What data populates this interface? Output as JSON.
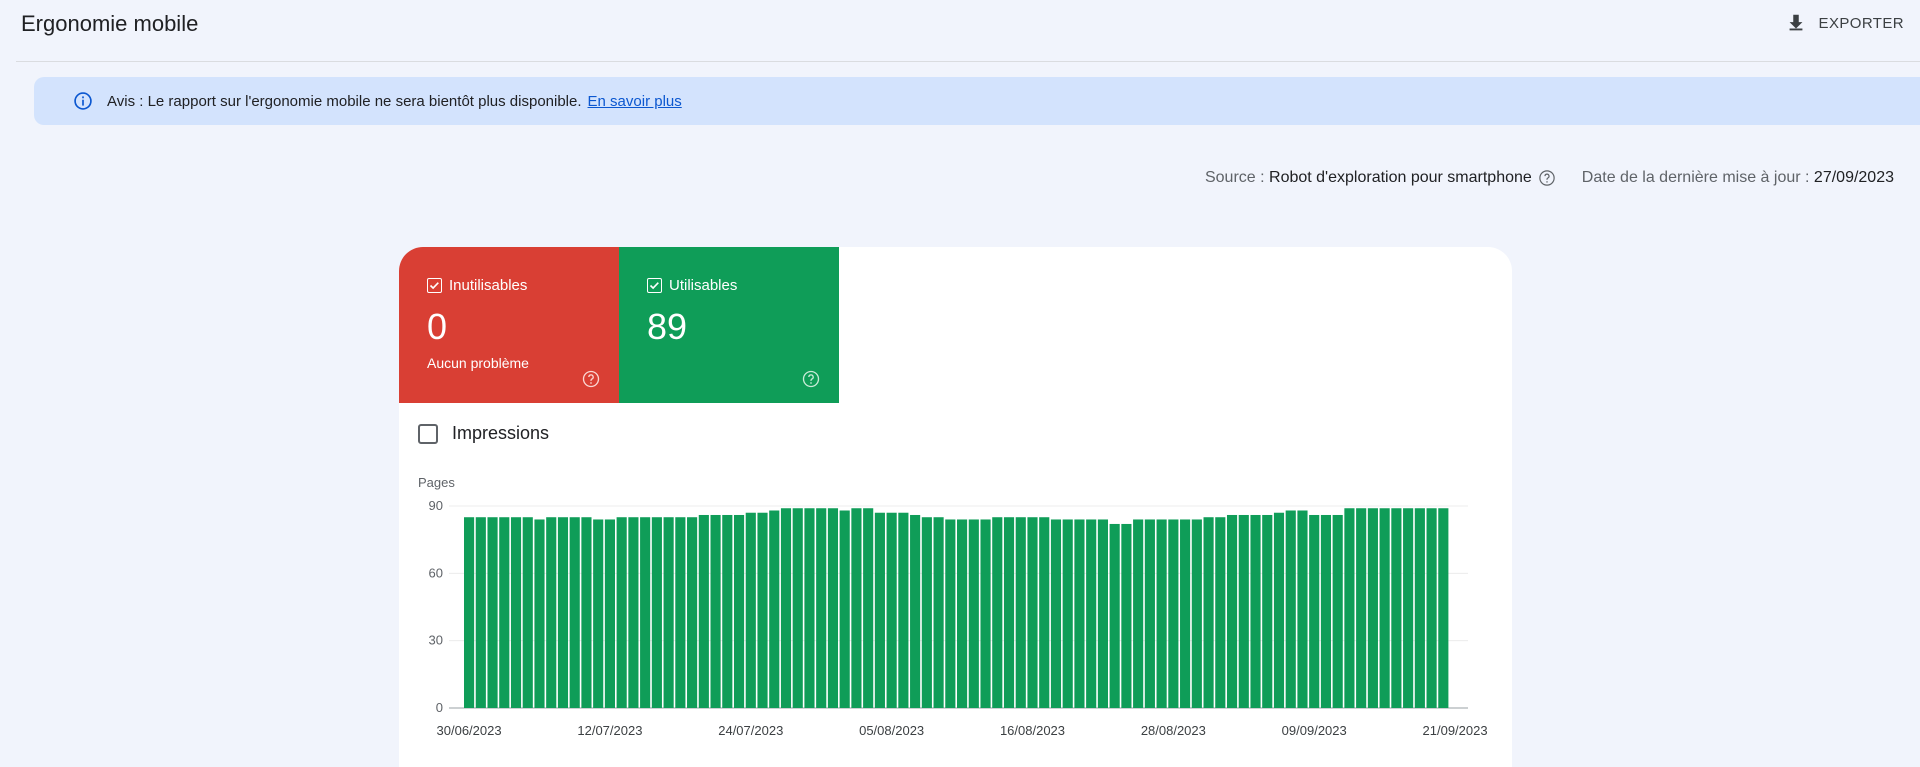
{
  "header": {
    "title": "Ergonomie mobile",
    "export_label": "EXPORTER"
  },
  "notice": {
    "text": "Avis : Le rapport sur l'ergonomie mobile ne sera bientôt plus disponible.",
    "link": "En savoir plus"
  },
  "meta": {
    "source_label": "Source :",
    "source_value": "Robot d'exploration pour smartphone",
    "date_label": "Date de la dernière mise à jour :",
    "date_value": "27/09/2023"
  },
  "tiles": [
    {
      "label": "Inutilisables",
      "value": "0",
      "sub": "Aucun problème",
      "color": "#d93f34"
    },
    {
      "label": "Utilisables",
      "value": "89",
      "sub": "",
      "color": "#0f9d58"
    }
  ],
  "impressions_label": "Impressions",
  "chart_data": {
    "type": "bar",
    "ylabel": "Pages",
    "ylim": [
      0,
      90
    ],
    "yticks": [
      0,
      30,
      60,
      90
    ],
    "grid": true,
    "bar_color": "#0f9d58",
    "xtick_labels": [
      "30/06/2023",
      "12/07/2023",
      "24/07/2023",
      "05/08/2023",
      "16/08/2023",
      "28/08/2023",
      "09/09/2023",
      "21/09/2023"
    ],
    "values": [
      85,
      85,
      85,
      85,
      85,
      85,
      84,
      85,
      85,
      85,
      85,
      84,
      84,
      85,
      85,
      85,
      85,
      85,
      85,
      85,
      86,
      86,
      86,
      86,
      87,
      87,
      88,
      89,
      89,
      89,
      89,
      89,
      88,
      89,
      89,
      87,
      87,
      87,
      86,
      85,
      85,
      84,
      84,
      84,
      84,
      85,
      85,
      85,
      85,
      85,
      84,
      84,
      84,
      84,
      84,
      82,
      82,
      84,
      84,
      84,
      84,
      84,
      84,
      85,
      85,
      86,
      86,
      86,
      86,
      87,
      88,
      88,
      86,
      86,
      86,
      89,
      89,
      89,
      89,
      89,
      89,
      89,
      89,
      89
    ]
  }
}
